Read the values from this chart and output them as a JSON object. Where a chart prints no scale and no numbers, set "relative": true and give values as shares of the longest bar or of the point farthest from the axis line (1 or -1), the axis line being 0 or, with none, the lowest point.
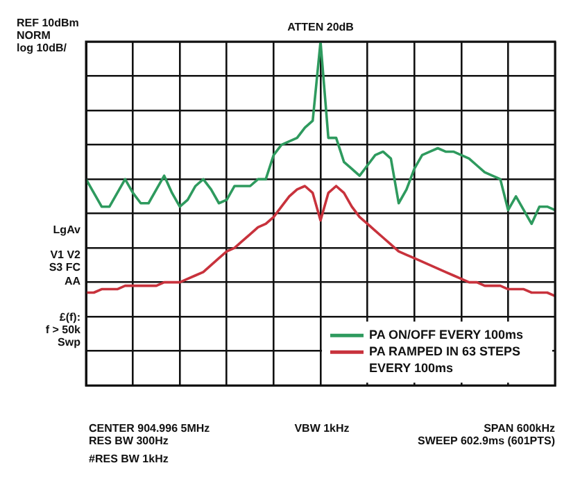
{
  "chart_data": {
    "type": "line",
    "relative": true,
    "categories": [
      null,
      null,
      null,
      null,
      null,
      null,
      null,
      null,
      null,
      null,
      null,
      null,
      null,
      null,
      null,
      null,
      null,
      null,
      null,
      null,
      null,
      null,
      null,
      null,
      null,
      null,
      null,
      null,
      null,
      null,
      null,
      null,
      null,
      null,
      null,
      null,
      null,
      null,
      null,
      null,
      null,
      null,
      null,
      null,
      null,
      null,
      null,
      null,
      null,
      null,
      null,
      null,
      null,
      null,
      null,
      null,
      null,
      null,
      null,
      null,
      null
    ],
    "grid": true,
    "legend": "bottom right",
    "marker": "none",
    "line_style": "solid",
    "series": [
      {
        "name": "PA ON/OFF EVERY 100ms",
        "color": "#2e9a5e",
        "values": [
          0.6,
          0.56,
          0.52,
          0.52,
          0.56,
          0.6,
          0.56,
          0.53,
          0.53,
          0.57,
          0.61,
          0.56,
          0.52,
          0.54,
          0.58,
          0.6,
          0.57,
          0.53,
          0.54,
          0.58,
          0.58,
          0.58,
          0.6,
          0.6,
          0.67,
          0.7,
          0.71,
          0.72,
          0.75,
          0.77,
          1.0,
          0.72,
          0.72,
          0.65,
          0.63,
          0.61,
          0.64,
          0.67,
          0.68,
          0.66,
          0.53,
          0.57,
          0.63,
          0.67,
          0.68,
          0.69,
          0.68,
          0.68,
          0.67,
          0.66,
          0.64,
          0.62,
          0.61,
          0.6,
          0.51,
          0.55,
          0.51,
          0.47,
          0.52,
          0.52,
          0.51
        ]
      },
      {
        "name": "PA RAMPED IN 63 STEPS EVERY 100ms",
        "color": "#c8323c",
        "values": [
          0.27,
          0.27,
          0.28,
          0.28,
          0.28,
          0.29,
          0.29,
          0.29,
          0.29,
          0.29,
          0.3,
          0.3,
          0.3,
          0.31,
          0.32,
          0.33,
          0.35,
          0.37,
          0.39,
          0.4,
          0.42,
          0.44,
          0.46,
          0.47,
          0.49,
          0.52,
          0.55,
          0.57,
          0.58,
          0.56,
          0.48,
          0.56,
          0.58,
          0.56,
          0.52,
          0.49,
          0.47,
          0.45,
          0.43,
          0.41,
          0.39,
          0.38,
          0.37,
          0.36,
          0.35,
          0.34,
          0.33,
          0.32,
          0.31,
          0.3,
          0.3,
          0.29,
          0.29,
          0.29,
          0.28,
          0.28,
          0.28,
          0.27,
          0.27,
          0.27,
          0.26
        ]
      }
    ],
    "annotations": [
      "REF 10dBm",
      "NORM",
      "log 10dB/",
      "ATTEN 20dB",
      "LgAv",
      "V1 V2",
      "S3 FC",
      "AA",
      "£(f):",
      "f > 50k",
      "Swp",
      "CENTER 904.996 5MHz",
      "RES BW 300Hz",
      "#RES BW 1kHz",
      "VBW 1kHz",
      "SPAN 600kHz",
      "SWEEP 602.9ms (601PTS)"
    ]
  }
}
